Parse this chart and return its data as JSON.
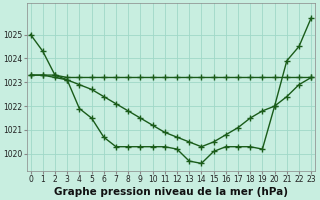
{
  "title": "Graphe pression niveau de la mer (hPa)",
  "background_color": "#c8eee0",
  "grid_color": "#a0d8c8",
  "line_color": "#1a5c1a",
  "x_hours": [
    0,
    1,
    2,
    3,
    4,
    5,
    6,
    7,
    8,
    9,
    10,
    11,
    12,
    13,
    14,
    15,
    16,
    17,
    18,
    19,
    20,
    21,
    22,
    23
  ],
  "series1": [
    1025.0,
    1024.3,
    1023.3,
    1023.1,
    1021.9,
    1021.5,
    1020.7,
    1020.3,
    1020.3,
    1020.3,
    1020.3,
    1020.3,
    1020.2,
    1019.7,
    1019.6,
    1020.1,
    1020.3,
    1020.3,
    1020.3,
    1020.2,
    1022.0,
    1023.9,
    1024.5,
    1025.7
  ],
  "series2": [
    1023.3,
    1023.3,
    1023.3,
    1023.2,
    1023.2,
    1023.2,
    1023.2,
    1023.2,
    1023.2,
    1023.2,
    1023.2,
    1023.2,
    1023.2,
    1023.2,
    1023.2,
    1023.2,
    1023.2,
    1023.2,
    1023.2,
    1023.2,
    1023.2,
    1023.2,
    1023.2,
    1023.2
  ],
  "series3": [
    1023.3,
    1023.3,
    1023.2,
    1023.1,
    1022.9,
    1022.7,
    1022.4,
    1022.1,
    1021.8,
    1021.5,
    1021.2,
    1020.9,
    1020.7,
    1020.5,
    1020.3,
    1020.5,
    1020.8,
    1021.1,
    1021.5,
    1021.8,
    1022.0,
    1022.4,
    1022.9,
    1023.2
  ],
  "ylim_min": 1019.3,
  "ylim_max": 1026.3,
  "yticks": [
    1020,
    1021,
    1022,
    1023,
    1024,
    1025
  ],
  "title_fontsize": 7.5,
  "tick_fontsize": 5.5
}
